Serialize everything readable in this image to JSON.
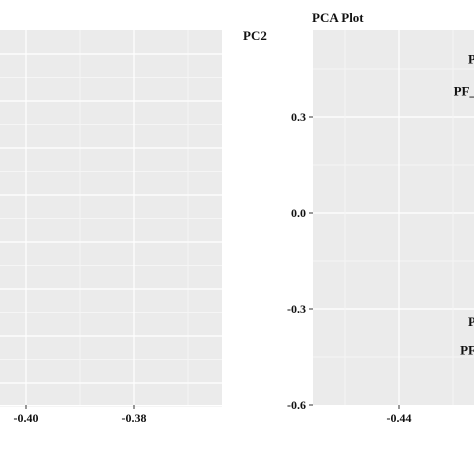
{
  "chart_data": [
    {
      "type": "scatter",
      "title": "",
      "xlabel": "",
      "ylabel": "",
      "x_ticks": [
        -0.4,
        -0.38
      ],
      "x_tick_labels": [
        "-0.40",
        "-0.38"
      ],
      "y_ticks": [],
      "y_tick_labels": [],
      "grid": true,
      "background": "#ebebeb",
      "points": []
    },
    {
      "type": "scatter",
      "title": "PCA Plot",
      "xlabel": "",
      "ylabel": "PC2",
      "x_ticks": [
        -0.44
      ],
      "x_tick_labels": [
        "-0.44"
      ],
      "y_ticks": [
        0.3,
        0.0,
        -0.3,
        -0.6
      ],
      "y_tick_labels": [
        "0.3",
        "0.0",
        "-0.3",
        "-0.6"
      ],
      "ylim": [
        -0.6,
        0.55
      ],
      "grid": true,
      "background": "#ebebeb",
      "points": [
        {
          "label": "P",
          "y": 0.48
        },
        {
          "label": "PF_",
          "y": 0.38
        },
        {
          "label": "P",
          "y": -0.34
        },
        {
          "label": "PF",
          "y": -0.43
        }
      ]
    }
  ]
}
